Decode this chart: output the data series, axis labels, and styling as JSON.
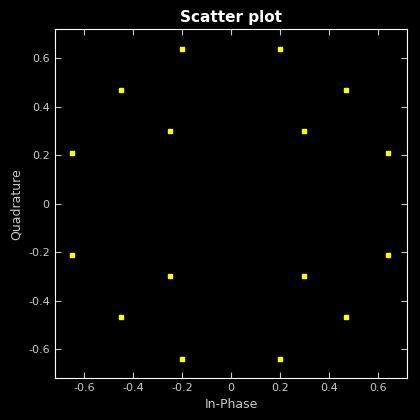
{
  "x": [
    -0.65,
    -0.45,
    -0.25,
    -0.2,
    0.2,
    0.3,
    0.47,
    0.64,
    -0.65,
    -0.45,
    -0.25,
    -0.2,
    0.2,
    0.3,
    0.47,
    0.64
  ],
  "y": [
    0.21,
    0.47,
    0.3,
    0.64,
    0.64,
    0.3,
    0.47,
    0.21,
    -0.21,
    -0.47,
    -0.3,
    -0.64,
    -0.64,
    -0.3,
    -0.47,
    -0.21
  ],
  "title": "Scatter plot",
  "xlabel": "In-Phase",
  "ylabel": "Quadrature",
  "marker": "s",
  "marker_color": "#FFFF00",
  "marker_size": 3,
  "bg_color": "#000000",
  "text_color": "#C8C8C8",
  "spine_color": "#FFFFFF",
  "xlim": [
    -0.72,
    0.72
  ],
  "ylim": [
    -0.72,
    0.72
  ],
  "xticks": [
    -0.6,
    -0.4,
    -0.2,
    0.0,
    0.2,
    0.4,
    0.6
  ],
  "yticks": [
    -0.6,
    -0.4,
    -0.2,
    0.0,
    0.2,
    0.4,
    0.6
  ],
  "title_fontsize": 11,
  "label_fontsize": 9,
  "tick_fontsize": 8
}
